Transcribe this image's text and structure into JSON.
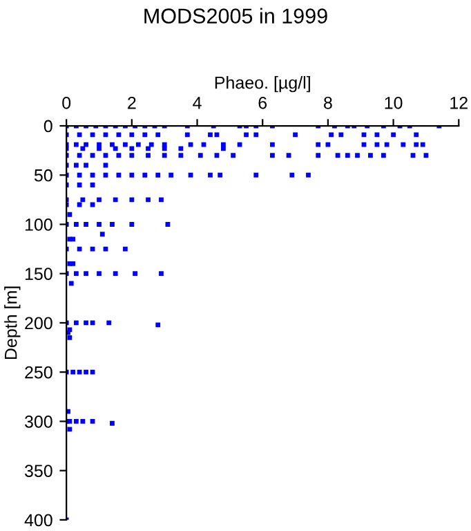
{
  "chart_data": {
    "type": "scatter",
    "title": "MODS2005 in 1999",
    "xlabel": "Phaeo. [µg/l]",
    "ylabel": "Depth [m]",
    "xlim": [
      0,
      12
    ],
    "xticks": [
      0,
      2,
      4,
      6,
      8,
      10,
      12
    ],
    "ylim": [
      400,
      0
    ],
    "yticks": [
      0,
      50,
      100,
      150,
      200,
      250,
      300,
      350,
      400
    ],
    "marker": "square",
    "grid": false,
    "series": [
      {
        "color": "#0000ff",
        "x": [
          0,
          0.3,
          0.6,
          0.9,
          1.2,
          1.5,
          1.8,
          2.1,
          2.4,
          2.7,
          3.0,
          3.7,
          4.5,
          5.3,
          5.5,
          5.8,
          6.3,
          7.7,
          8.2,
          8.6,
          8.8,
          9.2,
          9.7,
          10.2,
          10.5,
          11.4,
          0,
          0.4,
          0.8,
          1.2,
          1.6,
          2.0,
          2.4,
          2.8,
          3.7,
          4.4,
          4.6,
          5.5,
          5.8,
          7.0,
          8.1,
          8.4,
          9.1,
          9.5,
          10.0,
          10.7,
          0,
          0.3,
          0.6,
          1.0,
          1.4,
          1.8,
          2.2,
          2.6,
          3.0,
          3.8,
          4.2,
          4.8,
          5.3,
          6.3,
          7.7,
          8.0,
          9.1,
          9.5,
          9.8,
          10.3,
          10.7,
          10.9,
          0,
          0.5,
          1.0,
          1.5,
          2.0,
          2.5,
          3.0,
          3.5,
          4.8,
          0,
          0.4,
          0.8,
          1.2,
          1.6,
          2.0,
          2.5,
          3.0,
          3.5,
          4.1,
          4.6,
          5.1,
          6.3,
          6.8,
          7.7,
          8.3,
          8.6,
          8.9,
          9.3,
          9.7,
          10.6,
          11.0,
          0,
          0.3,
          0.6,
          1.2,
          0,
          0.4,
          0.8,
          1.2,
          1.6,
          2.0,
          2.4,
          2.8,
          3.2,
          3.8,
          4.4,
          4.7,
          5.8,
          6.9,
          7.4,
          0,
          0.4,
          0.8,
          0,
          0.5,
          1.0,
          1.5,
          2.0,
          2.5,
          2.9,
          0,
          0.4,
          0.8,
          0,
          0.3,
          0.6,
          1.0,
          1.4,
          2.0,
          3.1,
          1.1,
          0.1,
          0.2,
          0,
          0.4,
          0.8,
          1.2,
          1.8,
          0.1,
          0.2,
          0,
          0.3,
          0.6,
          1.0,
          1.5,
          2.1,
          2.9,
          0.1,
          0.15,
          0,
          0.3,
          0.6,
          0.8,
          1.3,
          2.8,
          0.05,
          0.1,
          0.1,
          0,
          0.2,
          0.4,
          0.6,
          0.8,
          0,
          0.1,
          0.3,
          0.5,
          0.8,
          1.4,
          0.05,
          0.1,
          0
        ],
        "values": [
          0,
          0,
          0,
          0,
          0,
          0,
          0,
          0,
          0,
          0,
          0,
          0,
          0,
          0,
          0,
          0,
          0,
          0,
          0,
          0,
          0,
          0,
          0,
          0,
          0,
          0,
          9,
          9,
          9,
          9,
          9,
          9,
          9,
          9,
          9,
          9,
          9,
          9,
          9,
          9,
          9,
          9,
          9,
          9,
          9,
          9,
          19,
          19,
          19,
          19,
          19,
          19,
          19,
          19,
          19,
          19,
          19,
          19,
          19,
          19,
          19,
          19,
          19,
          19,
          19,
          19,
          19,
          19,
          23,
          23,
          23,
          23,
          23,
          23,
          23,
          23,
          23,
          30,
          30,
          30,
          30,
          30,
          30,
          30,
          30,
          30,
          30,
          30,
          30,
          30,
          30,
          30,
          30,
          30,
          30,
          30,
          30,
          30,
          30,
          40,
          40,
          40,
          40,
          50,
          50,
          50,
          50,
          50,
          50,
          50,
          50,
          50,
          50,
          50,
          50,
          50,
          50,
          50,
          60,
          60,
          60,
          75,
          75,
          75,
          75,
          75,
          75,
          75,
          80,
          80,
          80,
          100,
          100,
          100,
          100,
          100,
          100,
          100,
          110,
          90,
          115,
          125,
          125,
          125,
          125,
          125,
          115,
          140,
          150,
          150,
          150,
          150,
          150,
          150,
          150,
          140,
          160,
          200,
          200,
          200,
          200,
          200,
          202,
          210,
          215,
          207,
          250,
          250,
          250,
          250,
          250,
          300,
          300,
          300,
          300,
          300,
          302,
          290,
          308,
          400
        ]
      }
    ]
  }
}
